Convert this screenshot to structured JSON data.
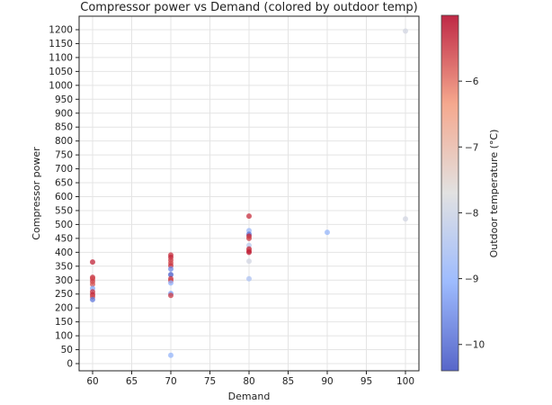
{
  "chart_data": {
    "type": "scatter",
    "title": "Compressor power vs Demand (colored by outdoor temp)",
    "xlabel": "Demand",
    "ylabel": "Compressor power",
    "xlim": [
      58.3,
      101.7
    ],
    "ylim": [
      -40,
      1250
    ],
    "xticks": [
      60,
      65,
      70,
      75,
      80,
      85,
      90,
      95,
      100
    ],
    "yticks": [
      0,
      50,
      100,
      150,
      200,
      250,
      300,
      350,
      400,
      450,
      500,
      550,
      600,
      650,
      700,
      750,
      800,
      850,
      900,
      950,
      1000,
      1050,
      1100,
      1150,
      1200
    ],
    "grid": true,
    "colorbar": {
      "label": "Outdoor temperature (°C)",
      "range": [
        -10.4,
        -5.0
      ],
      "ticks": [
        -6,
        -7,
        -8,
        -9,
        -10
      ],
      "colormap": "coolwarm"
    },
    "points": [
      {
        "x": 60,
        "y": 365,
        "c": -5.3
      },
      {
        "x": 60,
        "y": 310,
        "c": -5.4
      },
      {
        "x": 60,
        "y": 305,
        "c": -5.6
      },
      {
        "x": 60,
        "y": 295,
        "c": -5.5
      },
      {
        "x": 60,
        "y": 285,
        "c": -5.7
      },
      {
        "x": 60,
        "y": 270,
        "c": -9.2
      },
      {
        "x": 60,
        "y": 258,
        "c": -5.4
      },
      {
        "x": 60,
        "y": 248,
        "c": -5.3
      },
      {
        "x": 60,
        "y": 240,
        "c": -5.6
      },
      {
        "x": 60,
        "y": 230,
        "c": -9.8
      },
      {
        "x": 70,
        "y": 390,
        "c": -5.4
      },
      {
        "x": 70,
        "y": 382,
        "c": -5.3
      },
      {
        "x": 70,
        "y": 372,
        "c": -5.5
      },
      {
        "x": 70,
        "y": 362,
        "c": -5.6
      },
      {
        "x": 70,
        "y": 352,
        "c": -5.4
      },
      {
        "x": 70,
        "y": 340,
        "c": -9.6
      },
      {
        "x": 70,
        "y": 320,
        "c": -10.2
      },
      {
        "x": 70,
        "y": 305,
        "c": -5.4
      },
      {
        "x": 70,
        "y": 298,
        "c": -5.6
      },
      {
        "x": 70,
        "y": 290,
        "c": -9.0
      },
      {
        "x": 70,
        "y": 252,
        "c": -9.3
      },
      {
        "x": 70,
        "y": 245,
        "c": -5.5
      },
      {
        "x": 70,
        "y": 30,
        "c": -8.9
      },
      {
        "x": 80,
        "y": 530,
        "c": -5.4
      },
      {
        "x": 80,
        "y": 478,
        "c": -8.8
      },
      {
        "x": 80,
        "y": 465,
        "c": -9.9
      },
      {
        "x": 80,
        "y": 458,
        "c": -5.3
      },
      {
        "x": 80,
        "y": 450,
        "c": -5.5
      },
      {
        "x": 80,
        "y": 425,
        "c": -8.3
      },
      {
        "x": 80,
        "y": 412,
        "c": -5.3
      },
      {
        "x": 80,
        "y": 405,
        "c": -5.5
      },
      {
        "x": 80,
        "y": 400,
        "c": -5.2
      },
      {
        "x": 80,
        "y": 368,
        "c": -7.9
      },
      {
        "x": 80,
        "y": 305,
        "c": -8.5
      },
      {
        "x": 90,
        "y": 472,
        "c": -8.9
      },
      {
        "x": 100,
        "y": 1195,
        "c": -7.9
      },
      {
        "x": 100,
        "y": 520,
        "c": -7.9
      }
    ]
  }
}
